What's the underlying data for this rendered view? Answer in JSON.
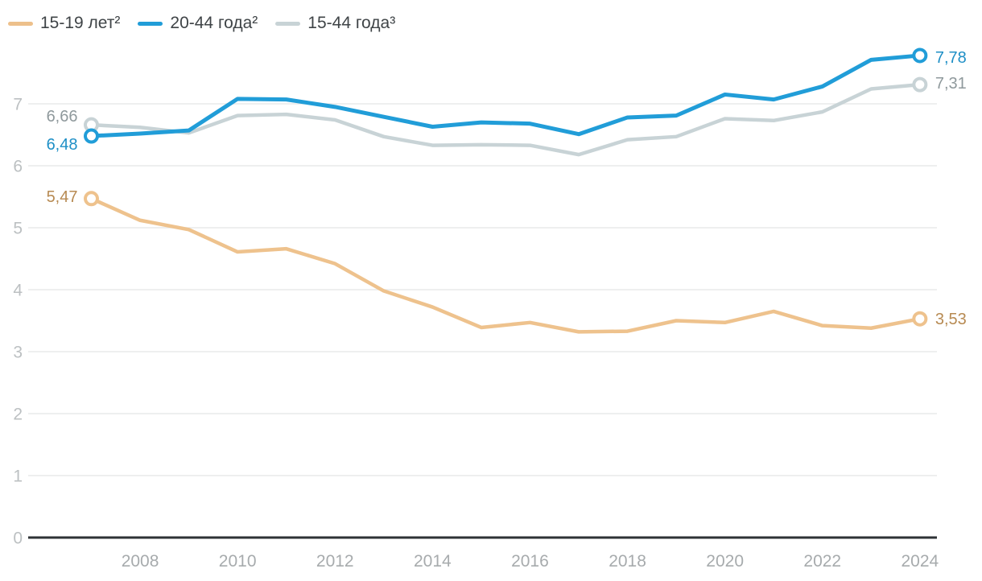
{
  "legend": {
    "items": [
      {
        "label": "15-19 лет²",
        "color": "#edc08b"
      },
      {
        "label": "20-44 года²",
        "color": "#219dd8"
      },
      {
        "label": "15-44 года³",
        "color": "#c8d3d6"
      }
    ]
  },
  "chart_data": {
    "type": "line",
    "x": [
      2007,
      2008,
      2009,
      2010,
      2011,
      2012,
      2013,
      2014,
      2015,
      2016,
      2017,
      2018,
      2019,
      2020,
      2021,
      2022,
      2023,
      2024
    ],
    "series": [
      {
        "name": "15-19 лет²",
        "color": "#eec28d",
        "label_color": "#b78a52",
        "values": [
          5.47,
          5.12,
          4.97,
          4.61,
          4.66,
          4.42,
          3.98,
          3.72,
          3.39,
          3.47,
          3.32,
          3.33,
          3.5,
          3.47,
          3.65,
          3.42,
          3.38,
          3.53
        ],
        "start_label": "5,47",
        "end_label": "3,53"
      },
      {
        "name": "20-44 года²",
        "color": "#219dd8",
        "label_color": "#1e8fc6",
        "values": [
          6.48,
          6.52,
          6.57,
          7.08,
          7.07,
          6.95,
          6.79,
          6.63,
          6.7,
          6.68,
          6.51,
          6.78,
          6.81,
          7.15,
          7.07,
          7.28,
          7.71,
          7.78
        ],
        "start_label": "6,48",
        "end_label": "7,78"
      },
      {
        "name": "15-44 года³",
        "color": "#c8d3d6",
        "label_color": "#8f999c",
        "values": [
          6.66,
          6.62,
          6.53,
          6.81,
          6.83,
          6.74,
          6.47,
          6.33,
          6.34,
          6.33,
          6.18,
          6.42,
          6.47,
          6.76,
          6.73,
          6.87,
          7.24,
          7.31
        ],
        "start_label": "6,66",
        "end_label": "7,31"
      }
    ],
    "xticks": [
      2008,
      2010,
      2012,
      2014,
      2016,
      2018,
      2020,
      2022,
      2024
    ],
    "yticks": [
      0,
      1,
      2,
      3,
      4,
      5,
      6,
      7
    ],
    "ylim": [
      0,
      7.9
    ],
    "grid": "horizontal",
    "legend_position": "top-left"
  },
  "colors": {
    "background": "#ffffff",
    "axis_line": "#2e3235",
    "gridline": "#e8eaea",
    "ytick_label": "#bcc0c2",
    "xtick_label": "#a7abad",
    "legend_text": "#3f4447"
  }
}
